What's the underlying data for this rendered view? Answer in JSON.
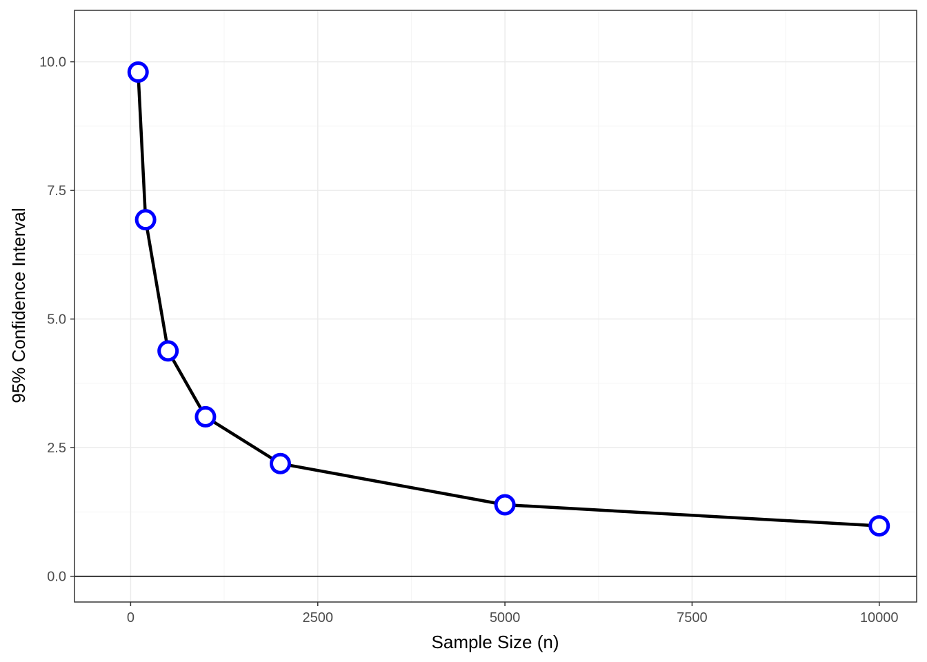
{
  "chart_data": {
    "type": "line",
    "title": "",
    "xlabel": "Sample Size (n)",
    "ylabel": "95% Confidence Interval",
    "xlim": [
      -750,
      10500
    ],
    "ylim": [
      -0.5,
      11.0
    ],
    "x_ticks": [
      0,
      2500,
      5000,
      7500,
      10000
    ],
    "x_tick_labels": [
      "0",
      "2500",
      "5000",
      "7500",
      "10000"
    ],
    "y_ticks": [
      0,
      2.5,
      5,
      7.5,
      10
    ],
    "y_tick_labels": [
      "0.0",
      "2.5",
      "5.0",
      "7.5",
      "10.0"
    ],
    "grid": true,
    "reference_line_y": 0,
    "series": [
      {
        "x": [
          100,
          200,
          500,
          1000,
          2000,
          5000,
          10000
        ],
        "y": [
          9.8,
          6.93,
          4.38,
          3.1,
          2.19,
          1.39,
          0.98
        ]
      }
    ],
    "colors": {
      "line": "#000000",
      "marker_stroke": "#0000ff",
      "marker_fill": "#ffffff",
      "grid_major": "#ebebeb",
      "grid_minor": "#f5f5f5",
      "panel_border": "#333333",
      "reference_line": "#000000"
    }
  }
}
